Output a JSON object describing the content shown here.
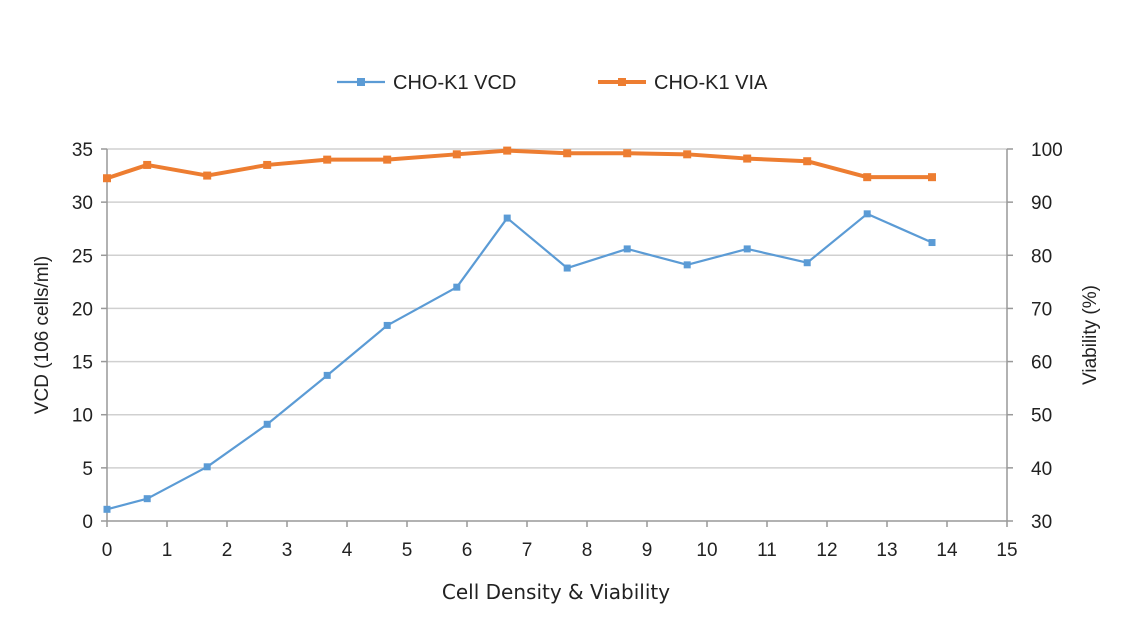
{
  "chart_data": {
    "type": "line",
    "xlabel": "Cell Density & Viability",
    "ylabel_left": "VCD (106 cells/ml)",
    "ylabel_right": "Viability (%)",
    "xlim": [
      0,
      15
    ],
    "ylim_left": [
      0,
      35
    ],
    "ylim_right": [
      30,
      100
    ],
    "x_ticks": [
      "0",
      "1",
      "2",
      "3",
      "4",
      "5",
      "6",
      "7",
      "8",
      "9",
      "10",
      "11",
      "12",
      "13",
      "14",
      "15"
    ],
    "y_left_ticks": [
      "0",
      "5",
      "10",
      "15",
      "20",
      "25",
      "30",
      "35"
    ],
    "y_right_ticks": [
      "30",
      "40",
      "50",
      "60",
      "70",
      "80",
      "90",
      "100"
    ],
    "grid": true,
    "legend_position": "top-center",
    "series": [
      {
        "name": "CHO-K1 VCD",
        "axis": "left",
        "color": "#5b9bd5",
        "marker": "square",
        "x": [
          0,
          0.67,
          1.67,
          2.67,
          3.67,
          4.67,
          5.83,
          6.67,
          7.67,
          8.67,
          9.67,
          10.67,
          11.67,
          12.67,
          13.75
        ],
        "y": [
          1.1,
          2.1,
          5.1,
          9.1,
          13.7,
          18.4,
          22.0,
          28.5,
          23.8,
          25.6,
          24.1,
          25.6,
          24.3,
          28.9,
          26.2
        ]
      },
      {
        "name": "CHO-K1 VIA",
        "axis": "right",
        "color": "#ed7d31",
        "marker": "square",
        "x": [
          0,
          0.67,
          1.67,
          2.67,
          3.67,
          4.67,
          5.83,
          6.67,
          7.67,
          8.67,
          9.67,
          10.67,
          11.67,
          12.67,
          13.75
        ],
        "y": [
          94.5,
          97.0,
          95.0,
          97.0,
          98.0,
          98.0,
          99.0,
          99.7,
          99.2,
          99.2,
          99.0,
          98.2,
          97.7,
          94.7,
          94.7
        ]
      }
    ]
  }
}
